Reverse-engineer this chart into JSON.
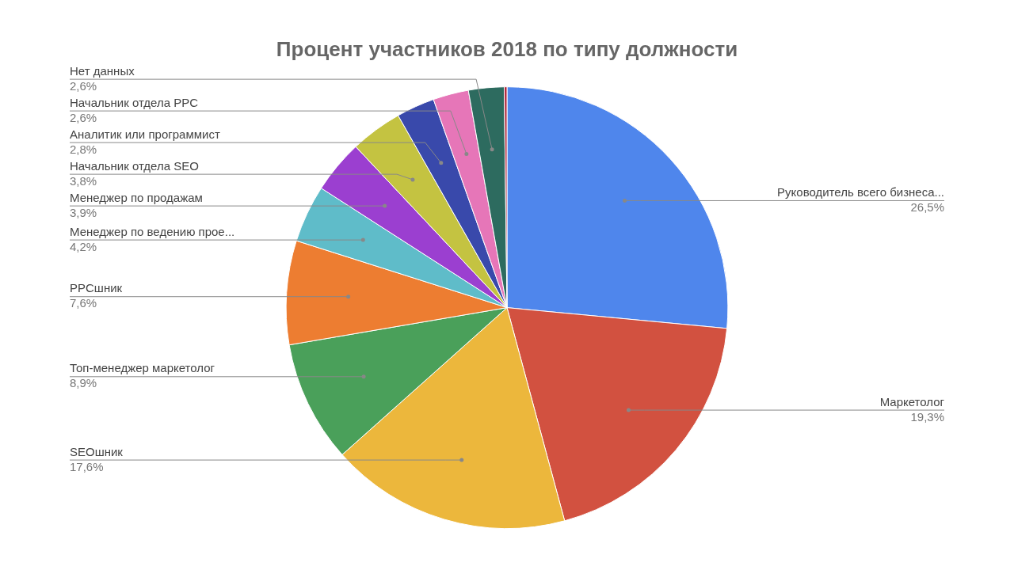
{
  "chart_data": {
    "type": "pie",
    "title": "Процент участников 2018 по типу должности",
    "categories": [
      "Руководитель всего бизнеса...",
      "Маркетолог",
      "SEOшник",
      "Топ-менеджер маркетолог",
      "PPCшник",
      "Менеджер по ведению прое...",
      "Менеджер по продажам",
      "Начальник отдела SEO",
      "Аналитик или программист",
      "Начальник отдела PPC",
      "Нет данных",
      null
    ],
    "values": [
      26.5,
      19.3,
      17.6,
      8.9,
      7.6,
      4.2,
      3.9,
      3.8,
      2.8,
      2.6,
      2.6,
      0.2
    ],
    "value_labels": [
      "26,5%",
      "19,3%",
      "17,6%",
      "8,9%",
      "7,6%",
      "4,2%",
      "3,9%",
      "3,8%",
      "2,8%",
      "2,6%",
      "2,6%",
      null
    ],
    "colors": [
      "#4f86ec",
      "#d25140",
      "#ecb73c",
      "#4aa05a",
      "#ed7d31",
      "#5fbcc9",
      "#9b3fd0",
      "#c4c341",
      "#3949ab",
      "#e676b8",
      "#2d6b5f",
      "#b0263a"
    ],
    "legend": false
  }
}
